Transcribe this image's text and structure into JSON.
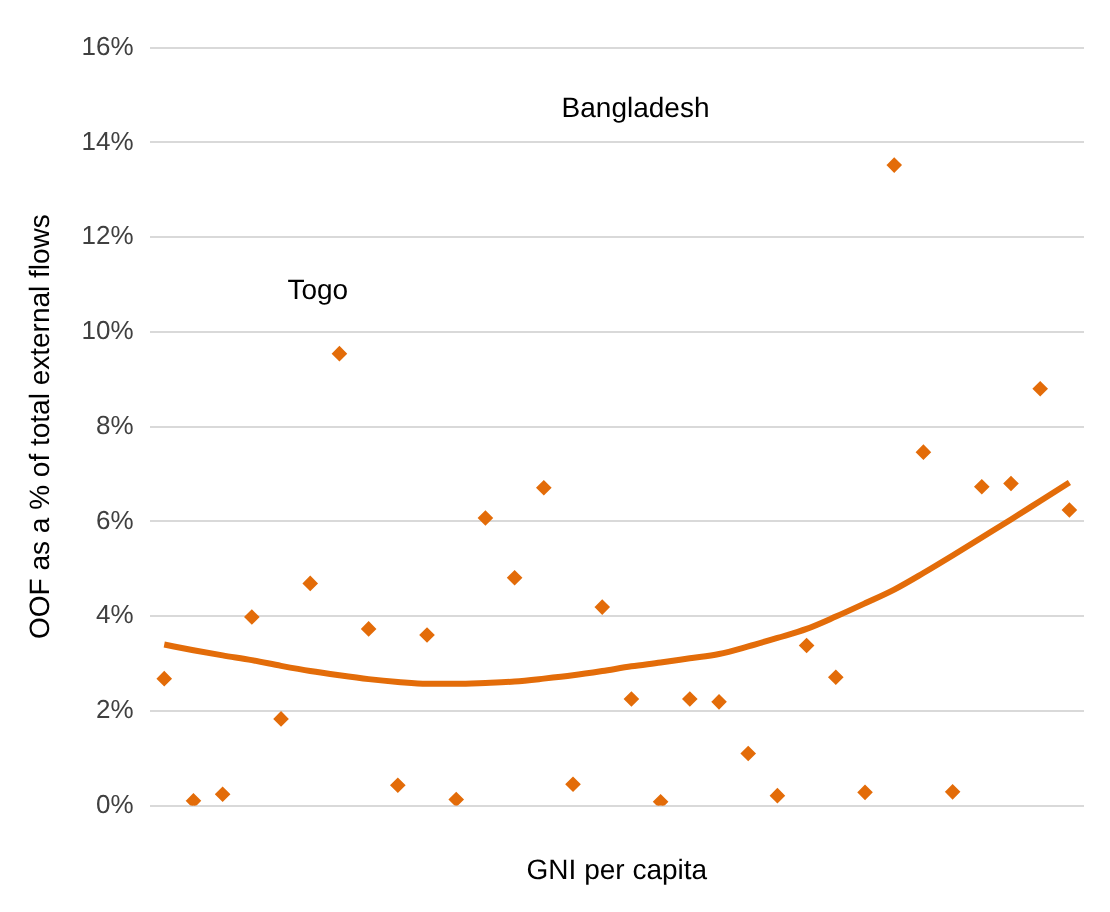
{
  "chart_data": {
    "type": "scatter",
    "xlabel": "GNI per capita",
    "ylabel": "OOF as a % of total external flows",
    "categories": [
      null,
      null,
      null,
      null,
      null,
      null,
      null,
      null,
      null,
      null,
      null,
      null,
      null,
      null,
      null,
      null,
      null,
      null,
      null,
      null,
      null,
      null,
      null,
      null,
      null,
      null,
      null,
      null,
      null,
      null,
      null,
      null
    ],
    "series": [
      {
        "color": "#e36c09",
        "marker": "diamond",
        "values": [
          2.68,
          0.1,
          0.24,
          3.98,
          1.83,
          4.69,
          9.54,
          3.73,
          0.43,
          3.6,
          0.13,
          6.07,
          4.81,
          6.71,
          0.45,
          4.19,
          2.25,
          0.08,
          2.25,
          2.19,
          1.1,
          0.21,
          3.38,
          2.71,
          0.28,
          13.52,
          7.46,
          0.29,
          6.73,
          6.8,
          8.8,
          6.24
        ]
      },
      {
        "type": "line",
        "color": "#e36c09",
        "marker": "none",
        "values": [
          3.4,
          3.28,
          3.17,
          3.07,
          2.95,
          2.84,
          2.75,
          2.67,
          2.61,
          2.57,
          2.57,
          2.59,
          2.62,
          2.68,
          2.75,
          2.84,
          2.94,
          3.02,
          3.11,
          3.2,
          3.36,
          3.54,
          3.73,
          3.99,
          4.27,
          4.56,
          4.91,
          5.28,
          5.66,
          6.04,
          6.43,
          6.82
        ]
      }
    ],
    "ylim": [
      0,
      16
    ],
    "yticks": [
      {
        "value": 0,
        "label": "0%"
      },
      {
        "value": 2,
        "label": "2%"
      },
      {
        "value": 4,
        "label": "4%"
      },
      {
        "value": 6,
        "label": "6%"
      },
      {
        "value": 8,
        "label": "8%"
      },
      {
        "value": 10,
        "label": "10%"
      },
      {
        "value": 12,
        "label": "12%"
      },
      {
        "value": 14,
        "label": "14%"
      },
      {
        "value": 16,
        "label": "16%"
      }
    ],
    "grid": "y",
    "legend": false,
    "annotations": [
      "Togo",
      "Bangladesh"
    ]
  }
}
